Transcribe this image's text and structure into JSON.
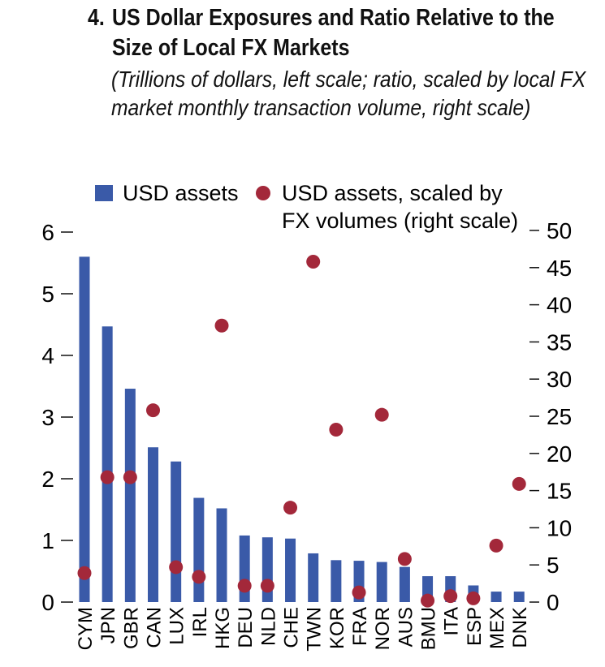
{
  "chart_data": {
    "type": "bar",
    "title_number": "4.",
    "title": "US Dollar Exposures and Ratio Relative to the Size of Local FX Markets",
    "subtitle": "(Trillions of dollars, left scale; ratio, scaled by local FX market monthly transaction volume, right scale)",
    "categories": [
      "CYM",
      "JPN",
      "GBR",
      "CAN",
      "LUX",
      "IRL",
      "HKG",
      "DEU",
      "NLD",
      "CHE",
      "TWN",
      "KOR",
      "FRA",
      "NOR",
      "AUS",
      "BMU",
      "ITA",
      "ESP",
      "MEX",
      "DNK"
    ],
    "series": [
      {
        "name": "USD assets",
        "kind": "bar",
        "axis": "left",
        "color": "#3a5aa8",
        "values": [
          5.6,
          4.47,
          3.46,
          2.51,
          2.28,
          1.69,
          1.52,
          1.08,
          1.05,
          1.03,
          0.79,
          0.68,
          0.67,
          0.65,
          0.57,
          0.42,
          0.42,
          0.27,
          0.17,
          0.17
        ]
      },
      {
        "name": "USD assets, scaled by FX volumes (right scale)",
        "kind": "scatter",
        "axis": "right",
        "color": "#a3283a",
        "values": [
          3.9,
          16.8,
          16.8,
          25.8,
          4.7,
          3.4,
          37.2,
          2.2,
          2.2,
          12.7,
          45.8,
          23.2,
          1.3,
          25.2,
          5.8,
          0.2,
          0.8,
          0.5,
          7.6,
          15.9
        ]
      }
    ],
    "legend": [
      {
        "label": "USD assets",
        "marker": "bar"
      },
      {
        "label_line1": "USD assets, scaled by",
        "label_line2": "FX volumes (right scale)",
        "marker": "dot"
      }
    ],
    "yleft": {
      "lim": [
        0,
        6
      ],
      "ticks": [
        "0",
        "1",
        "2",
        "3",
        "4",
        "5",
        "6"
      ]
    },
    "yright": {
      "lim": [
        0,
        50
      ],
      "ticks": [
        "0",
        "5",
        "10",
        "15",
        "20",
        "25",
        "30",
        "35",
        "40",
        "45",
        "50"
      ]
    }
  }
}
